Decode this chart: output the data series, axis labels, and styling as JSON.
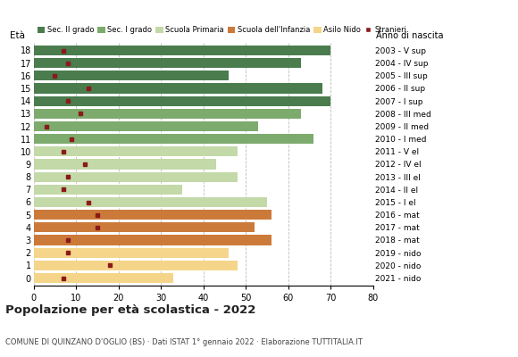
{
  "ages": [
    18,
    17,
    16,
    15,
    14,
    13,
    12,
    11,
    10,
    9,
    8,
    7,
    6,
    5,
    4,
    3,
    2,
    1,
    0
  ],
  "years": [
    "2003 - V sup",
    "2004 - IV sup",
    "2005 - III sup",
    "2006 - II sup",
    "2007 - I sup",
    "2008 - III med",
    "2009 - II med",
    "2010 - I med",
    "2011 - V el",
    "2012 - IV el",
    "2013 - III el",
    "2014 - II el",
    "2015 - I el",
    "2016 - mat",
    "2017 - mat",
    "2018 - mat",
    "2019 - nido",
    "2020 - nido",
    "2021 - nido"
  ],
  "bar_values": [
    70,
    63,
    46,
    68,
    70,
    63,
    53,
    66,
    48,
    43,
    48,
    35,
    55,
    56,
    52,
    56,
    46,
    48,
    33
  ],
  "stranieri": [
    7,
    8,
    5,
    13,
    8,
    11,
    3,
    9,
    7,
    12,
    8,
    7,
    13,
    15,
    15,
    8,
    8,
    18,
    7
  ],
  "categories": {
    "Sec. II grado": {
      "ages": [
        18,
        17,
        16,
        15,
        14
      ],
      "color": "#4a7c4e"
    },
    "Sec. I grado": {
      "ages": [
        13,
        12,
        11
      ],
      "color": "#7dab6e"
    },
    "Scuola Primaria": {
      "ages": [
        10,
        9,
        8,
        7,
        6
      ],
      "color": "#c3d9a8"
    },
    "Scuola dell'Infanzia": {
      "ages": [
        5,
        4,
        3
      ],
      "color": "#cc7a3a"
    },
    "Asilo Nido": {
      "ages": [
        2,
        1,
        0
      ],
      "color": "#f5d58a"
    }
  },
  "stranieri_color": "#8b1a1a",
  "title": "Popolazione per età scolastica - 2022",
  "subtitle": "COMUNE DI QUINZANO D'OGLIO (BS) · Dati ISTAT 1° gennaio 2022 · Elaborazione TUTTITALIA.IT",
  "xlabel_age": "Età",
  "xlabel_year": "Anno di nascita",
  "xlim": [
    0,
    80
  ],
  "xticks": [
    0,
    10,
    20,
    30,
    40,
    50,
    60,
    70,
    80
  ],
  "bg_color": "#ffffff",
  "legend_order": [
    "Sec. II grado",
    "Sec. I grado",
    "Scuola Primaria",
    "Scuola dell'Infanzia",
    "Asilo Nido"
  ],
  "legend_colors": {
    "Sec. II grado": "#4a7c4e",
    "Sec. I grado": "#7dab6e",
    "Scuola Primaria": "#c3d9a8",
    "Scuola dell'Infanzia": "#cc7a3a",
    "Asilo Nido": "#f5d58a"
  }
}
